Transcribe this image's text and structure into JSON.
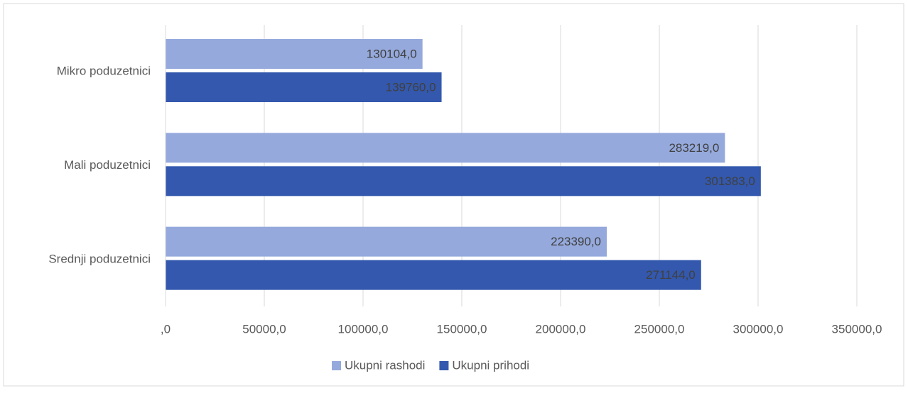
{
  "chart_data": {
    "type": "hbar",
    "categories": [
      "Mikro poduzetnici",
      "Mali poduzetnici",
      "Srednji poduzetnici"
    ],
    "series": [
      {
        "name": "Ukupni rashodi",
        "color": "#95a9dc",
        "values": [
          130104,
          283219,
          223390
        ],
        "value_labels": [
          "130104,0",
          "283219,0",
          "223390,0"
        ]
      },
      {
        "name": "Ukupni prihodi",
        "color": "#3358ad",
        "values": [
          139760,
          301383,
          271144
        ],
        "value_labels": [
          "139760,0",
          "301383,0",
          "271144,0"
        ]
      }
    ],
    "xlim": [
      0,
      350000
    ],
    "xticks": [
      {
        "value": 0,
        "label": ",0"
      },
      {
        "value": 50000,
        "label": "50000,0"
      },
      {
        "value": 100000,
        "label": "100000,0"
      },
      {
        "value": 150000,
        "label": "150000,0"
      },
      {
        "value": 200000,
        "label": "200000,0"
      },
      {
        "value": 250000,
        "label": "250000,0"
      },
      {
        "value": 300000,
        "label": "300000,0"
      },
      {
        "value": 350000,
        "label": "350000,0"
      }
    ],
    "grid": true,
    "legend": "bottom"
  }
}
